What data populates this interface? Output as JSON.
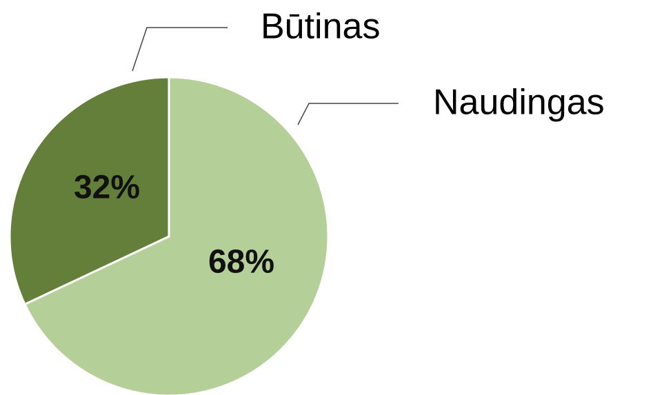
{
  "chart_data": {
    "type": "pie",
    "categories": [
      "Naudingas",
      "Būtinas"
    ],
    "values": [
      68,
      32
    ],
    "value_labels": [
      "68%",
      "32%"
    ],
    "colors": [
      "#b5cf98",
      "#637f3a"
    ]
  }
}
